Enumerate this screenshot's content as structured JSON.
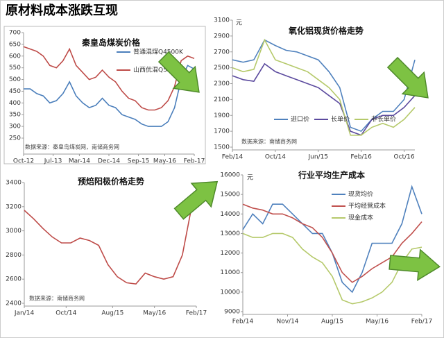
{
  "header": {
    "title": "原材料成本涨跌互现"
  },
  "chart_data": [
    {
      "type": "line",
      "title": "秦皇岛煤炭价格",
      "source": "数据来源：秦皇岛煤炭网，南储商务网",
      "legend": "upper right",
      "x": [
        "Oct-12",
        "Dec-12",
        "Feb-13",
        "Apr-13",
        "Jun-13",
        "Aug-13",
        "Oct-13",
        "Dec-13",
        "Feb-14",
        "Apr-14",
        "Jun-14",
        "Aug-14",
        "Oct-14",
        "Dec-14",
        "Feb-15",
        "Apr-15",
        "Jun-15",
        "Aug-15",
        "Oct-15",
        "Dec-15",
        "Feb-16",
        "Apr-16",
        "Jun-16",
        "Aug-16",
        "Oct-16",
        "Dec-16",
        "Feb-17"
      ],
      "series": [
        {
          "name": "普通混煤Q4500K",
          "color": "#4a7ebb",
          "values": [
            460,
            460,
            440,
            430,
            400,
            410,
            440,
            490,
            430,
            400,
            380,
            390,
            420,
            390,
            380,
            350,
            340,
            330,
            310,
            300,
            300,
            300,
            320,
            380,
            500,
            560,
            545
          ]
        },
        {
          "name": "山西优混Q5500K",
          "color": "#be4b48",
          "values": [
            640,
            630,
            620,
            600,
            560,
            550,
            580,
            630,
            560,
            530,
            500,
            510,
            540,
            510,
            490,
            450,
            420,
            410,
            380,
            370,
            370,
            380,
            410,
            470,
            580,
            600,
            590
          ]
        }
      ],
      "xlim": [
        "Oct-12",
        "Feb-17"
      ],
      "xticks": [
        "Oct-12",
        "Jul-13",
        "Mar-14",
        "Dec-14",
        "Sep-15",
        "May-16",
        "Feb-17"
      ],
      "ylim": [
        250,
        700
      ],
      "yticks": [
        250,
        300,
        350,
        400,
        450,
        500,
        550,
        600,
        650,
        700
      ]
    },
    {
      "type": "line",
      "title": "氧化铝现货价格走势",
      "unit": "元",
      "source": "数据来源：南储商务网",
      "legend": "lower center",
      "x": [
        "Feb/14",
        "Apr/14",
        "Jun/14",
        "Aug/14",
        "Oct/14",
        "Dec/14",
        "Feb/15",
        "Apr/15",
        "Jun/15",
        "Aug/15",
        "Oct/15",
        "Dec/15",
        "Feb/16",
        "Apr/16",
        "Jun/16",
        "Aug/16",
        "Oct/16",
        "Dec/16"
      ],
      "series": [
        {
          "name": "进口价",
          "color": "#4f81bd",
          "values": [
            2600,
            2570,
            2600,
            2850,
            2780,
            2720,
            2700,
            2650,
            2600,
            2450,
            2250,
            1750,
            1700,
            1850,
            1950,
            1950,
            2100,
            2600
          ]
        },
        {
          "name": "长单价",
          "color": "#5b4a9e",
          "values": [
            2400,
            2350,
            2330,
            2550,
            2450,
            2400,
            2350,
            2300,
            2250,
            2150,
            2050,
            1700,
            1650,
            1850,
            1900,
            1900,
            2000,
            2150
          ]
        },
        {
          "name": "非长单价",
          "color": "#b5c96a",
          "values": [
            2500,
            2450,
            2480,
            2850,
            2600,
            2550,
            2500,
            2450,
            2350,
            2250,
            2100,
            1650,
            1650,
            1750,
            1800,
            1750,
            1850,
            2000
          ]
        }
      ],
      "xlim": [
        "Feb/14",
        "Dec/16"
      ],
      "xticks": [
        "Feb/14",
        "Oct/14",
        "Jun/15",
        "Feb/16",
        "Oct/16"
      ],
      "ylim": [
        1500,
        3100
      ],
      "yticks": [
        1500,
        1700,
        1900,
        2100,
        2300,
        2500,
        2700,
        2900,
        3100
      ]
    },
    {
      "type": "line",
      "title": "预焙阳极价格走势",
      "source": "数据来源：南储商务网",
      "color": "#be4b48",
      "x": [
        "Jan/14",
        "Mar/14",
        "May/14",
        "Jul/14",
        "Sep/14",
        "Nov/14",
        "Jan/15",
        "Mar/15",
        "May/15",
        "Jul/15",
        "Sep/15",
        "Nov/15",
        "Jan/16",
        "Mar/16",
        "May/16",
        "Jul/16",
        "Sep/16",
        "Nov/16",
        "Jan/17"
      ],
      "values": [
        3170,
        3100,
        3020,
        2950,
        2900,
        2900,
        2940,
        2920,
        2880,
        2720,
        2620,
        2570,
        2560,
        2650,
        2620,
        2600,
        2620,
        2800,
        3200
      ],
      "xlim": [
        "Jan/14",
        "Feb/17"
      ],
      "xticks": [
        "Jan/14",
        "Oct/14",
        "Aug/15",
        "May/16",
        "Feb/17"
      ],
      "ylim": [
        2400,
        3400
      ],
      "yticks": [
        2400,
        2600,
        2800,
        3000,
        3200,
        3400
      ]
    },
    {
      "type": "line",
      "title": "行业平均生产成本",
      "unit": "元",
      "legend": "upper right",
      "x": [
        "Feb/14",
        "Apr/14",
        "Jun/14",
        "Aug/14",
        "Oct/14",
        "Dec/14",
        "Feb/15",
        "Apr/15",
        "Jun/15",
        "Aug/15",
        "Oct/15",
        "Dec/15",
        "Feb/16",
        "Apr/16",
        "Jun/16",
        "Aug/16",
        "Oct/16",
        "Dec/16",
        "Feb/17"
      ],
      "series": [
        {
          "name": "现货均价",
          "color": "#4f81bd",
          "values": [
            13200,
            14000,
            13500,
            14500,
            14500,
            14000,
            13500,
            13000,
            13000,
            12000,
            10500,
            10000,
            11000,
            12500,
            12500,
            12500,
            13500,
            15400,
            14000
          ]
        },
        {
          "name": "平均经营成本",
          "color": "#c0504d",
          "values": [
            14500,
            14300,
            14200,
            14000,
            14000,
            13800,
            13500,
            13300,
            12800,
            12000,
            11000,
            10500,
            10800,
            11200,
            11500,
            11800,
            12500,
            13000,
            13600
          ]
        },
        {
          "name": "现金成本",
          "color": "#b5c96a",
          "values": [
            13000,
            12800,
            12800,
            13000,
            13000,
            12800,
            12200,
            11800,
            11500,
            10800,
            9600,
            9400,
            9500,
            9700,
            10000,
            10500,
            11500,
            12200,
            12300
          ]
        }
      ],
      "xlim": [
        "Feb/14",
        "Feb/17"
      ],
      "xticks": [
        "Feb/14",
        "Nov/14",
        "Aug/15",
        "May/16",
        "Feb/17"
      ],
      "ylim": [
        9000,
        16000
      ],
      "yticks": [
        9000,
        10000,
        11000,
        12000,
        13000,
        14000,
        15000,
        16000
      ]
    }
  ]
}
